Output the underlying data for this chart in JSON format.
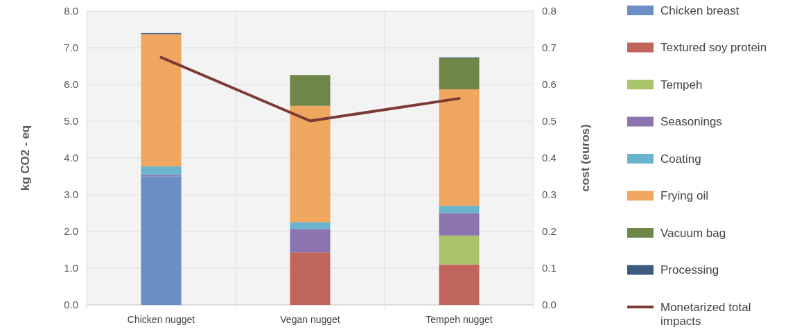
{
  "chart_data": {
    "type": "bar",
    "stacked": true,
    "categories": [
      "Chicken nugget",
      "Vegan nugget",
      "Tempeh nugget"
    ],
    "ylabel": "kg CO2 - eq",
    "y2label": "cost (euros)",
    "ylim": [
      0,
      8
    ],
    "yticks": [
      {
        "value": 0,
        "label": "0.0"
      },
      {
        "value": 1,
        "label": "1.0"
      },
      {
        "value": 2,
        "label": "2.0"
      },
      {
        "value": 3,
        "label": "3.0"
      },
      {
        "value": 4,
        "label": "4.0"
      },
      {
        "value": 5,
        "label": "5.0"
      },
      {
        "value": 6,
        "label": "6.0"
      },
      {
        "value": 7,
        "label": "7.0"
      },
      {
        "value": 8,
        "label": "8.0"
      }
    ],
    "y2lim": [
      0,
      0.8
    ],
    "y2ticks": [
      {
        "value": 0,
        "label": "0.0"
      },
      0.1,
      0.2,
      0.3,
      0.4,
      0.5,
      0.6,
      0.7,
      0.8
    ],
    "grid": true,
    "legend": "right",
    "series": [
      {
        "name": "Chicken breast",
        "color": "#6a8fc4",
        "values": [
          3.5,
          0,
          0
        ]
      },
      {
        "name": "Textured soy protein",
        "color": "#c0655c",
        "values": [
          0,
          1.43,
          1.1
        ]
      },
      {
        "name": "Tempeh",
        "color": "#a9c46c",
        "values": [
          0,
          0,
          0.79
        ]
      },
      {
        "name": "Seasonings",
        "color": "#8c74b0",
        "values": [
          0.04,
          0.63,
          0.61
        ]
      },
      {
        "name": "Coating",
        "color": "#6ab3cc",
        "values": [
          0.23,
          0.19,
          0.2
        ]
      },
      {
        "name": "Frying oil",
        "color": "#efa65e",
        "values": [
          3.6,
          3.17,
          3.17
        ]
      },
      {
        "name": "Vacuum bag",
        "color": "#6e8647",
        "values": [
          0,
          0.84,
          0.85
        ]
      },
      {
        "name": "Processing",
        "color": "#3d5a80",
        "values": [
          0.03,
          0,
          0.02
        ]
      },
      {
        "name": "Monetarized total impacts",
        "type": "line",
        "axis": "y2",
        "color": "#7b3a36",
        "values": [
          0.674,
          0.501,
          0.562
        ]
      }
    ]
  }
}
